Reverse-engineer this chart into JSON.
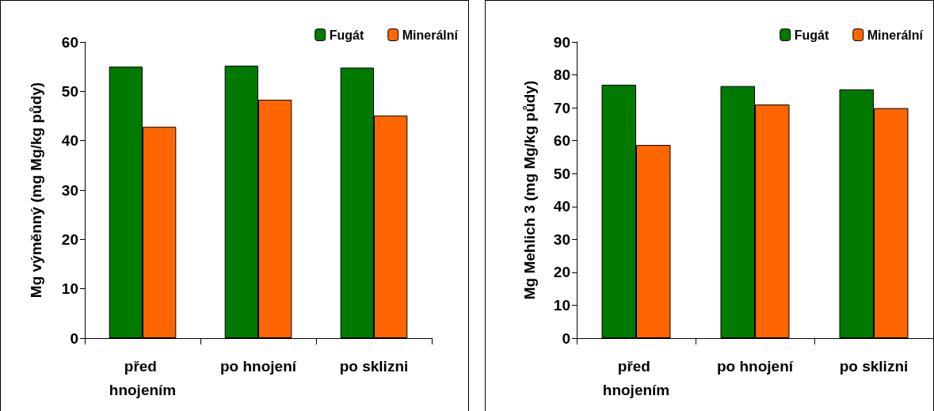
{
  "chart_data": [
    {
      "type": "bar",
      "ylabel": "Mg výměnný (mg Mg/kg půdy)",
      "categories": [
        "před hnojením",
        "po hnojení",
        "po sklizni"
      ],
      "series": [
        {
          "name": "Fugát",
          "color": "#007a00",
          "values": [
            55.0,
            55.2,
            54.8
          ]
        },
        {
          "name": "Minerální",
          "color": "#ff6600",
          "values": [
            42.8,
            48.3,
            45.1
          ]
        }
      ],
      "ylim": [
        0,
        60
      ],
      "yticks": [
        0,
        10,
        20,
        30,
        40,
        50,
        60
      ],
      "grid": false,
      "legend": "top right"
    },
    {
      "type": "bar",
      "ylabel": "Mg Mehlich 3 (mg Mg/kg půdy)",
      "categories": [
        "před hnojením",
        "po hnojení",
        "po sklizni"
      ],
      "series": [
        {
          "name": "Fugát",
          "color": "#007a00",
          "values": [
            77.0,
            76.6,
            75.6
          ]
        },
        {
          "name": "Minerální",
          "color": "#ff6600",
          "values": [
            58.7,
            71.0,
            69.9
          ]
        }
      ],
      "ylim": [
        0,
        90
      ],
      "yticks": [
        0,
        10,
        20,
        30,
        40,
        50,
        60,
        70,
        80,
        90
      ],
      "grid": false,
      "legend": "top right"
    }
  ]
}
